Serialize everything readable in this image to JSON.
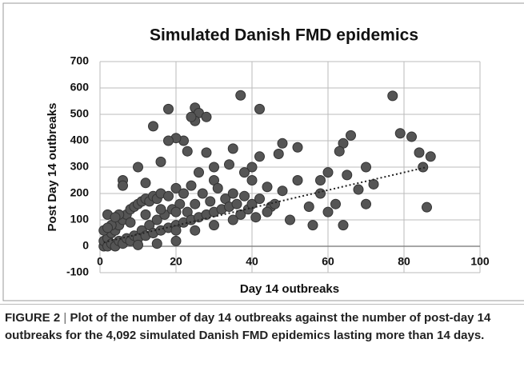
{
  "chart_data": {
    "type": "scatter",
    "title": "Simulated Danish FMD epidemics",
    "x_label": "Day 14 outbreaks",
    "y_label": "Post Day 14 outbreaks",
    "color": "#555555",
    "x": [
      77,
      37,
      42,
      18,
      25,
      26,
      25,
      24,
      28,
      14,
      82,
      79,
      84,
      85,
      87,
      86,
      66,
      64,
      63,
      52,
      48,
      47,
      42,
      40,
      60,
      65,
      70,
      72,
      68,
      58,
      62,
      70,
      64,
      56,
      50,
      45,
      52,
      38,
      34,
      30,
      22,
      20,
      18,
      23,
      28,
      16,
      10,
      6,
      6,
      12,
      2,
      40,
      44,
      48,
      55,
      60,
      58,
      35,
      30,
      26,
      1,
      1,
      2,
      2,
      3,
      3,
      4,
      4,
      5,
      5,
      6,
      6,
      7,
      7,
      8,
      8,
      9,
      9,
      10,
      10,
      11,
      11,
      12,
      12,
      13,
      13,
      14,
      14,
      15,
      15,
      16,
      16,
      17,
      18,
      18,
      19,
      20,
      20,
      21,
      22,
      22,
      23,
      24,
      24,
      25,
      26,
      27,
      28,
      29,
      30,
      31,
      32,
      33,
      34,
      35,
      36,
      37,
      38,
      39,
      40,
      41,
      42,
      44,
      46,
      1,
      3,
      5,
      8,
      12,
      16,
      20,
      25,
      30,
      35,
      10,
      15,
      20,
      4,
      2,
      20
    ],
    "values": [
      570,
      572,
      520,
      520,
      525,
      505,
      475,
      490,
      490,
      455,
      415,
      428,
      355,
      300,
      340,
      148,
      420,
      390,
      360,
      375,
      390,
      350,
      340,
      300,
      280,
      270,
      300,
      235,
      215,
      200,
      160,
      160,
      80,
      80,
      100,
      150,
      250,
      280,
      310,
      300,
      400,
      410,
      400,
      360,
      355,
      320,
      300,
      250,
      230,
      240,
      120,
      250,
      225,
      210,
      150,
      130,
      250,
      370,
      250,
      280,
      0,
      20,
      0,
      30,
      10,
      50,
      0,
      60,
      20,
      80,
      10,
      100,
      30,
      120,
      20,
      140,
      40,
      150,
      30,
      160,
      60,
      170,
      40,
      180,
      80,
      170,
      50,
      190,
      100,
      180,
      60,
      200,
      120,
      70,
      190,
      140,
      80,
      220,
      160,
      90,
      200,
      130,
      100,
      230,
      160,
      110,
      200,
      120,
      170,
      130,
      220,
      140,
      180,
      150,
      200,
      160,
      120,
      190,
      140,
      160,
      110,
      180,
      130,
      160,
      60,
      80,
      120,
      90,
      120,
      140,
      130,
      60,
      80,
      100,
      5,
      10,
      20,
      110,
      70,
      60
    ],
    "trendline": {
      "x": [
        1,
        86
      ],
      "values": [
        15,
        300
      ]
    },
    "xlim": [
      0,
      100
    ],
    "xticks": [
      0,
      20,
      40,
      60,
      80,
      100
    ],
    "ylim": [
      -100,
      700
    ],
    "yticks": [
      -100,
      0,
      100,
      200,
      300,
      400,
      500,
      600,
      700
    ],
    "grid": true
  },
  "caption": {
    "label": "FIGURE 2",
    "text": "Plot of the number of day 14 outbreaks against the number of post-day 14 outbreaks for the 4,092 simulated Danish FMD epidemics lasting more than 14 days."
  }
}
